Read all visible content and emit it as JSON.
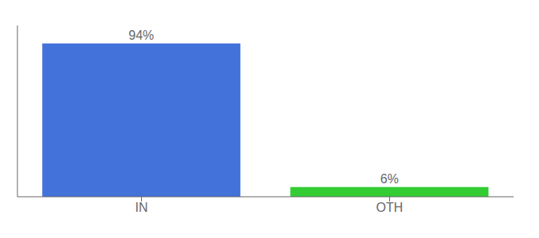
{
  "chart_data": {
    "type": "bar",
    "categories": [
      "IN",
      "OTH"
    ],
    "values": [
      94,
      6
    ],
    "value_labels": [
      "94%",
      "6%"
    ],
    "colors": [
      "#4472db",
      "#33cc33"
    ],
    "ylim": [
      0,
      105
    ],
    "data_labels": true,
    "tick_labels": "x",
    "grid": false
  }
}
